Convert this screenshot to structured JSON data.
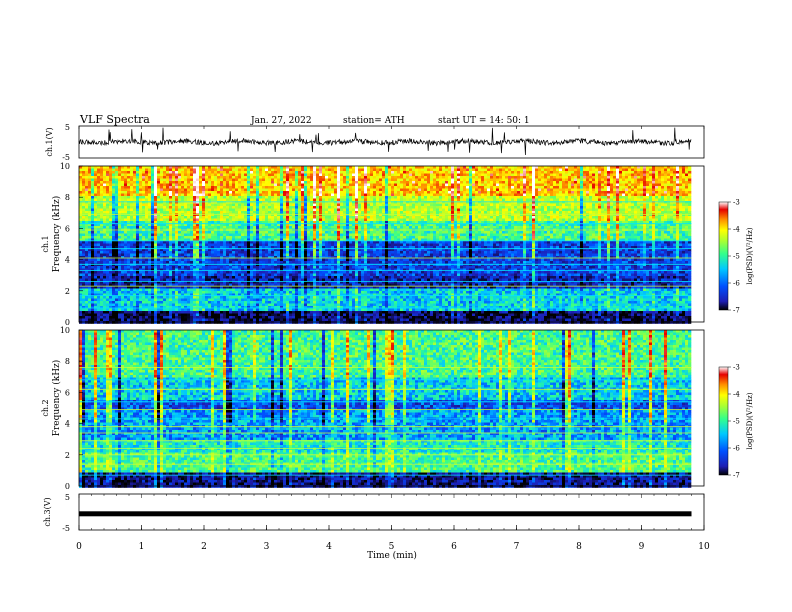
{
  "header": {
    "title": "VLF  Spectra",
    "date": "Jan.  27,  2022",
    "station": "station= ATH",
    "start": "start  UT  =    14: 50: 1"
  },
  "chart_data": [
    {
      "id": "ch1",
      "type": "line",
      "ylabel": "ch.1(V)",
      "yticks": [
        "5",
        "-5"
      ],
      "ylim": [
        -5,
        5
      ],
      "baseline": 0,
      "spike_max": 4.5
    },
    {
      "id": "spec1",
      "type": "heatmap",
      "ylabel_top": "ch.1",
      "ylabel": "Frequency  (kHz)",
      "yticks": [
        "0",
        "2",
        "4",
        "6",
        "8",
        "10"
      ],
      "ylim": [
        0,
        10
      ],
      "xlim": [
        0,
        10
      ],
      "colorbar": {
        "label": "log(PSD)(V²/Hz)",
        "ticks": [
          "-3",
          "-4",
          "-5",
          "-6",
          "-7"
        ],
        "range": [
          -7,
          -3
        ]
      }
    },
    {
      "id": "spec2",
      "type": "heatmap",
      "ylabel_top": "ch.2",
      "ylabel": "Frequency  (kHz)",
      "yticks": [
        "0",
        "2",
        "4",
        "6",
        "8",
        "10"
      ],
      "ylim": [
        0,
        10
      ],
      "xlim": [
        0,
        10
      ],
      "colorbar": {
        "label": "log(PSD)(V²/Hz)",
        "ticks": [
          "-3",
          "-4",
          "-5",
          "-6",
          "-7"
        ],
        "range": [
          -7,
          -3
        ]
      }
    },
    {
      "id": "ch3",
      "type": "line",
      "ylabel": "ch.3(V)",
      "yticks": [
        "5",
        "-5"
      ],
      "ylim": [
        -5,
        5
      ],
      "baseline": -0.5
    }
  ],
  "xaxis": {
    "label": "Time  (min)",
    "ticks": [
      "0",
      "1",
      "2",
      "3",
      "4",
      "5",
      "6",
      "7",
      "8",
      "9",
      "10"
    ],
    "xlim": [
      0,
      10
    ],
    "data_end": 9.8
  },
  "colormap": [
    "#000000",
    "#1e1eb4",
    "#0050ff",
    "#00c8ff",
    "#32ff8c",
    "#aaff32",
    "#ffff00",
    "#ff8c00",
    "#e60000",
    "#ffffff"
  ]
}
